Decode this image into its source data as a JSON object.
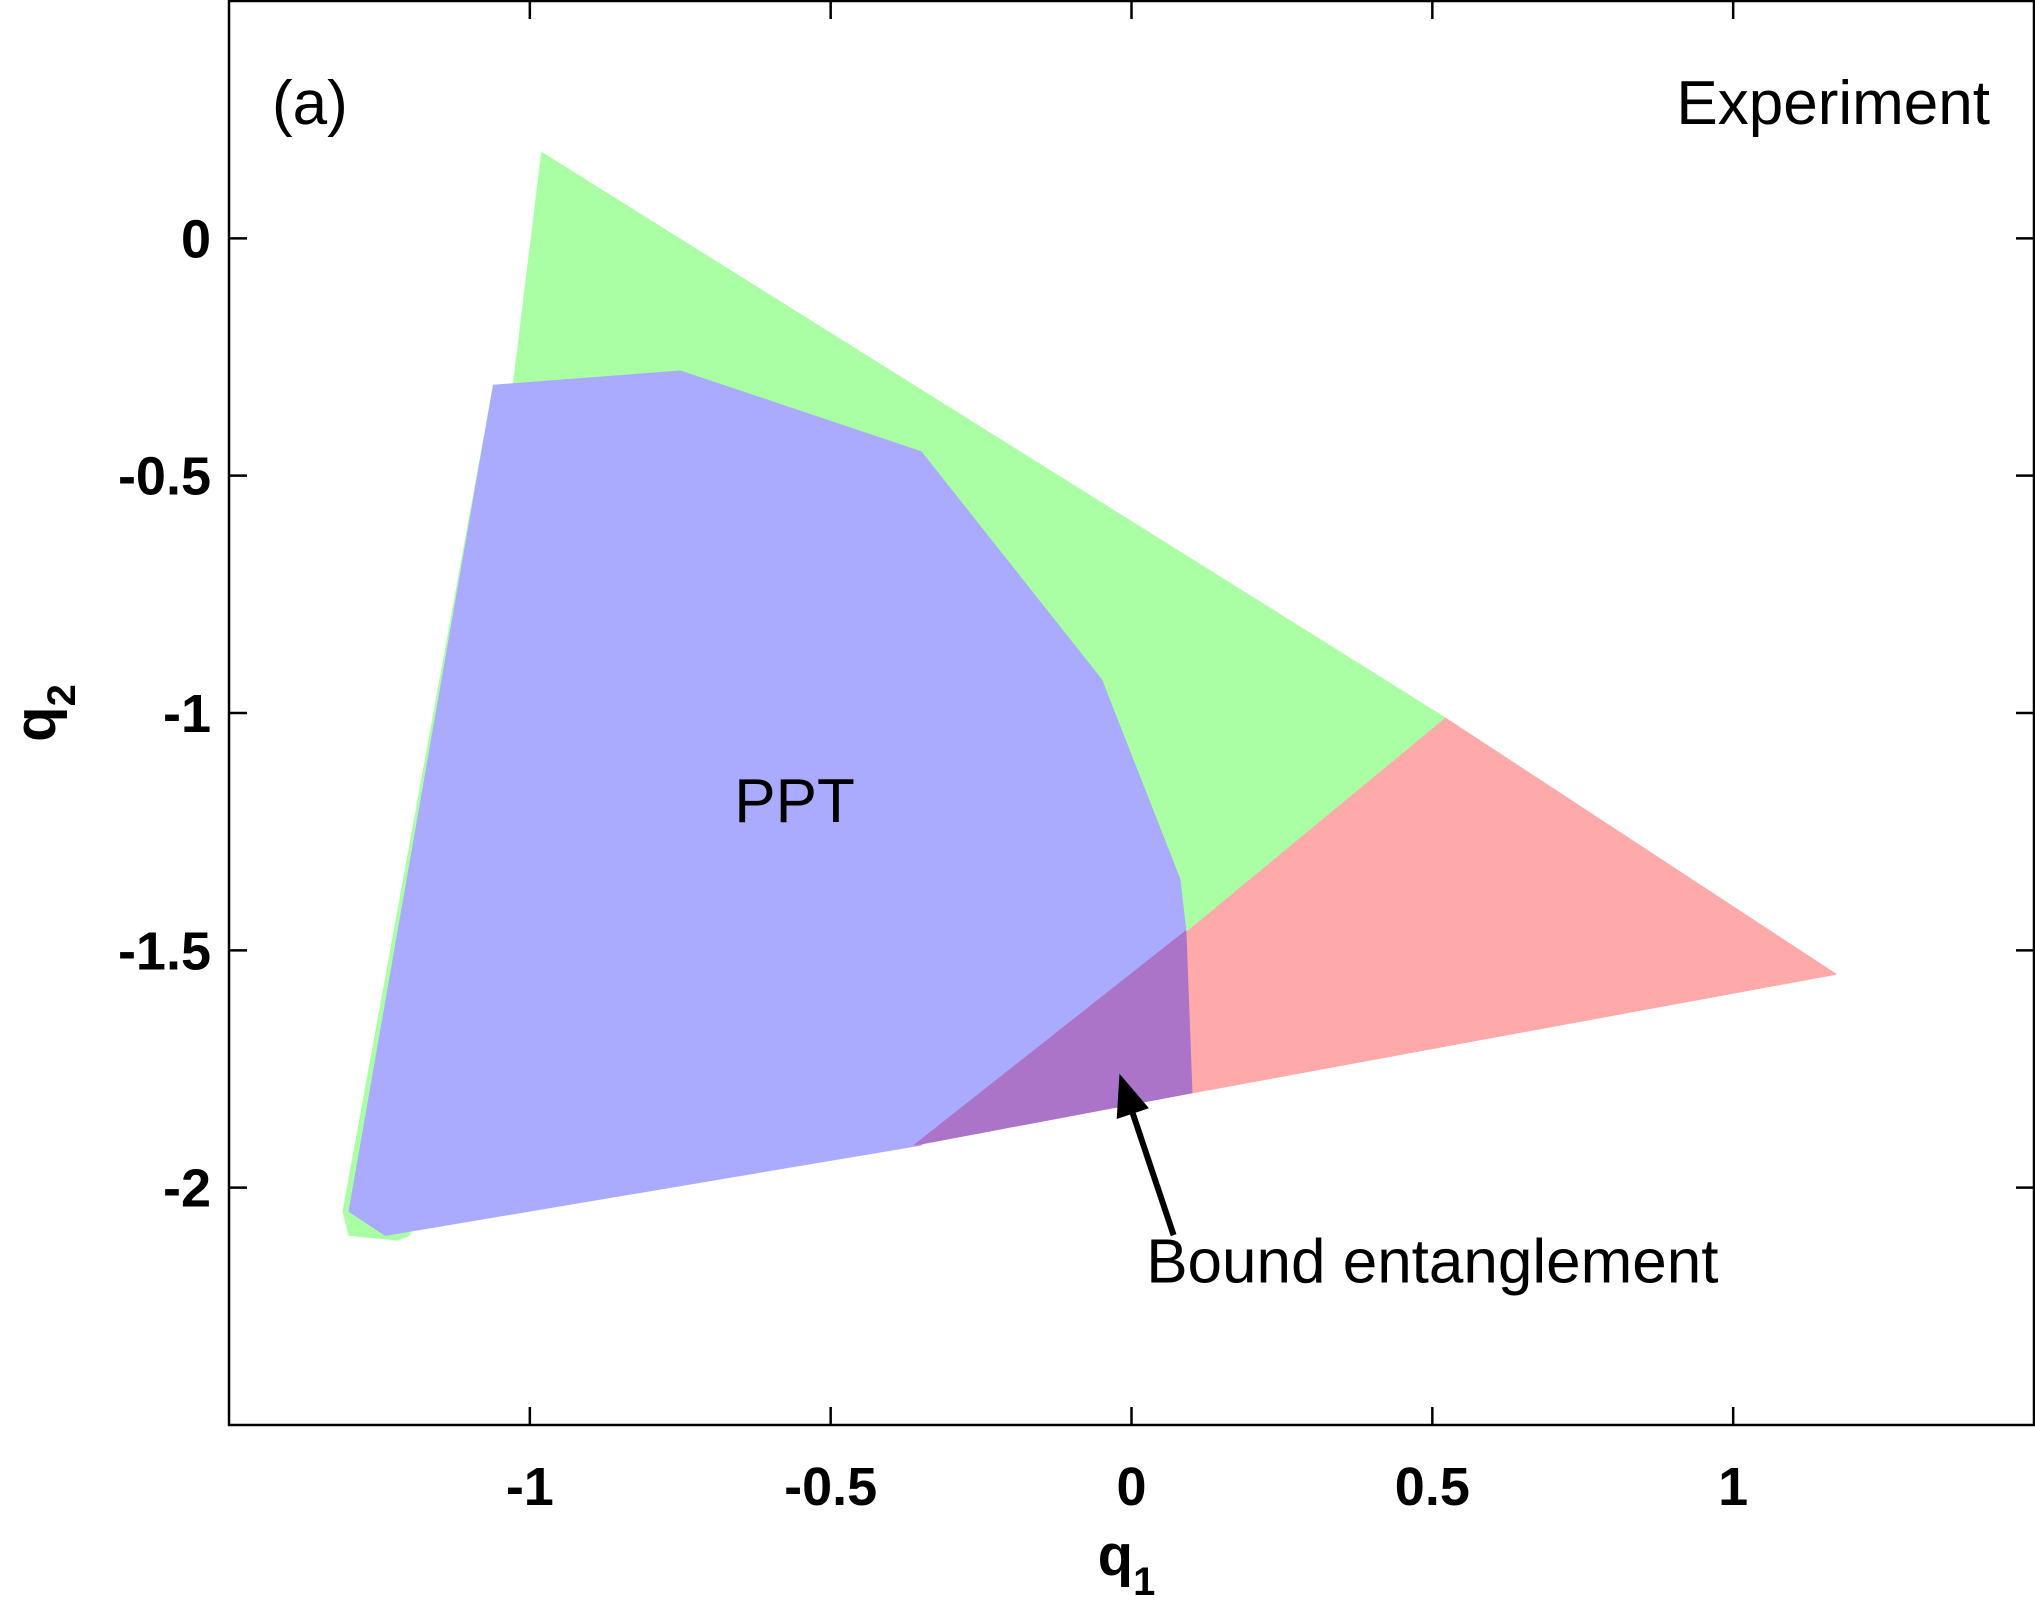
{
  "chart_data": {
    "type": "region",
    "panel_label": "(a)",
    "title": "Experiment",
    "xlabel": "q",
    "xlabel_subscript": "1",
    "ylabel": "q",
    "ylabel_subscript": "2",
    "xlim": [
      -1.5,
      1.5
    ],
    "ylim": [
      -2.5,
      0.5
    ],
    "x_ticks": [
      {
        "value": -1,
        "label": "-1"
      },
      {
        "value": -0.5,
        "label": "-0.5"
      },
      {
        "value": 0,
        "label": "0"
      },
      {
        "value": 0.5,
        "label": "0.5"
      },
      {
        "value": 1,
        "label": "1"
      }
    ],
    "y_ticks": [
      {
        "value": 0,
        "label": "0"
      },
      {
        "value": -0.5,
        "label": "-0.5"
      },
      {
        "value": -1,
        "label": "-1"
      },
      {
        "value": -1.5,
        "label": "-1.5"
      },
      {
        "value": -2,
        "label": "-2"
      }
    ],
    "grid": false,
    "regions": [
      {
        "name": "entangled-npt",
        "color": "#ffaaaa",
        "points": [
          [
            0.52,
            -1.01
          ],
          [
            1.17,
            -1.55
          ],
          [
            0.1,
            -1.8
          ],
          [
            0.09,
            -1.46
          ]
        ]
      },
      {
        "name": "green-region",
        "color": "#aaffa4",
        "points": [
          [
            -0.98,
            0.18
          ],
          [
            0.52,
            -1.01
          ],
          [
            0.09,
            -1.46
          ],
          [
            0.08,
            -1.35
          ],
          [
            -0.05,
            -0.93
          ],
          [
            -0.35,
            -0.45
          ],
          [
            -0.75,
            -0.28
          ],
          [
            -1.06,
            -0.31
          ],
          [
            -1.31,
            -2.05
          ],
          [
            -1.3,
            -2.1
          ],
          [
            -1.22,
            -2.11
          ],
          [
            -1.2,
            -2.1
          ]
        ]
      },
      {
        "name": "ppt",
        "color": "#aaaaff",
        "points": [
          [
            -1.06,
            -0.31
          ],
          [
            -0.75,
            -0.28
          ],
          [
            -0.35,
            -0.45
          ],
          [
            -0.05,
            -0.93
          ],
          [
            0.08,
            -1.35
          ],
          [
            0.09,
            -1.46
          ],
          [
            -0.35,
            -1.91
          ],
          [
            -1.24,
            -2.1
          ],
          [
            -1.3,
            -2.05
          ]
        ]
      },
      {
        "name": "bound-entanglement",
        "color": "#ac74c8",
        "points": [
          [
            0.09,
            -1.46
          ],
          [
            0.1,
            -1.8
          ],
          [
            -0.36,
            -1.91
          ]
        ]
      }
    ],
    "annotations": [
      {
        "text": "PPT",
        "x": -0.56,
        "y": -1.23
      },
      {
        "text": "Bound entanglement",
        "x": 0.5,
        "y": -2.2,
        "arrow_to": [
          -0.02,
          -1.76
        ]
      }
    ]
  }
}
